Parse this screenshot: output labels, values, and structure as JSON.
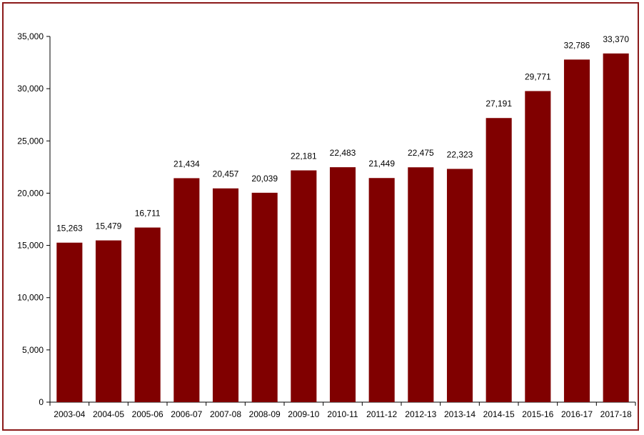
{
  "chart_data": {
    "type": "bar",
    "categories": [
      "2003-04",
      "2004-05",
      "2005-06",
      "2006-07",
      "2007-08",
      "2008-09",
      "2009-10",
      "2010-11",
      "2011-12",
      "2012-13",
      "2013-14",
      "2014-15",
      "2015-16",
      "2016-17",
      "2017-18"
    ],
    "values": [
      15263,
      15479,
      16711,
      21434,
      20457,
      20039,
      22181,
      22483,
      21449,
      22475,
      22323,
      27191,
      29771,
      32786,
      33370
    ],
    "value_labels": [
      "15,263",
      "15,479",
      "16,711",
      "21,434",
      "20,457",
      "20,039",
      "22,181",
      "22,483",
      "21,449",
      "22,475",
      "22,323",
      "27,191",
      "29,771",
      "32,786",
      "33,370"
    ],
    "y_ticks": [
      0,
      5000,
      10000,
      15000,
      20000,
      25000,
      30000,
      35000
    ],
    "y_tick_labels": [
      "0",
      "5,000",
      "10,000",
      "15,000",
      "20,000",
      "25,000",
      "30,000",
      "35,000"
    ],
    "ylim": [
      0,
      35000
    ],
    "title": "",
    "xlabel": "",
    "ylabel": "",
    "grid": false,
    "legend": "none",
    "bar_color": "#800000",
    "border_color": "#8b1a1a"
  }
}
